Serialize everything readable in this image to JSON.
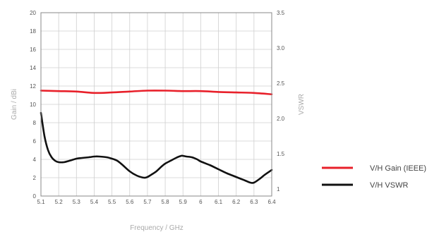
{
  "chart_data": {
    "type": "line",
    "xlabel": "Frequency / GHz",
    "ylabel_left": "Gain / dBi",
    "ylabel_right": "VSWR",
    "xlim": [
      5.1,
      6.4
    ],
    "ylim_left": [
      0,
      20
    ],
    "ylim_right": [
      0.9,
      3.5
    ],
    "x_ticks": [
      "5.1",
      "5.2",
      "5.3",
      "5.4",
      "5.5",
      "5.6",
      "5.7",
      "5.8",
      "5.9",
      "6",
      "6.1",
      "6.2",
      "6.3",
      "6.4"
    ],
    "y_left_ticks": [
      "0",
      "2",
      "4",
      "6",
      "8",
      "10",
      "12",
      "14",
      "16",
      "18",
      "20"
    ],
    "y_right_ticks": [
      "1",
      "1.5",
      "2.0",
      "2.5",
      "3.0",
      "3.5"
    ],
    "grid": true,
    "legend_position": "right",
    "series": [
      {
        "name": "V/H Gain (IEEE)",
        "color": "#e8202a",
        "axis": "left",
        "x": [
          5.1,
          5.2,
          5.3,
          5.4,
          5.5,
          5.6,
          5.7,
          5.8,
          5.9,
          6.0,
          6.1,
          6.2,
          6.3,
          6.4
        ],
        "values": [
          11.5,
          11.45,
          11.4,
          11.25,
          11.3,
          11.4,
          11.5,
          11.5,
          11.45,
          11.45,
          11.35,
          11.3,
          11.25,
          11.1
        ]
      },
      {
        "name": "V/H VSWR",
        "color": "#111111",
        "axis": "right",
        "x": [
          5.1,
          5.12,
          5.14,
          5.16,
          5.18,
          5.2,
          5.23,
          5.26,
          5.3,
          5.33,
          5.37,
          5.4,
          5.43,
          5.47,
          5.5,
          5.53,
          5.56,
          5.6,
          5.64,
          5.68,
          5.7,
          5.72,
          5.75,
          5.78,
          5.8,
          5.83,
          5.86,
          5.89,
          5.9,
          5.92,
          5.95,
          5.98,
          6.0,
          6.05,
          6.1,
          6.15,
          6.2,
          6.25,
          6.28,
          6.3,
          6.33,
          6.36,
          6.4
        ],
        "values": [
          2.08,
          1.75,
          1.55,
          1.45,
          1.4,
          1.38,
          1.38,
          1.4,
          1.43,
          1.44,
          1.45,
          1.46,
          1.46,
          1.45,
          1.43,
          1.4,
          1.34,
          1.25,
          1.19,
          1.16,
          1.17,
          1.2,
          1.25,
          1.32,
          1.36,
          1.4,
          1.44,
          1.47,
          1.47,
          1.46,
          1.45,
          1.42,
          1.39,
          1.34,
          1.28,
          1.22,
          1.17,
          1.12,
          1.09,
          1.09,
          1.14,
          1.2,
          1.27
        ]
      }
    ]
  }
}
